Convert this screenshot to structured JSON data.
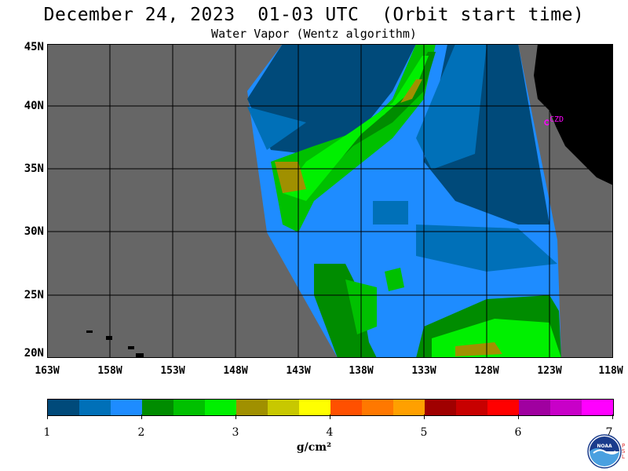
{
  "header": {
    "title": "December 24, 2023  01-03 UTC  (Orbit start time)",
    "subtitle": "Water Vapor (Wentz algorithm)"
  },
  "map": {
    "lat_labels": [
      "45N",
      "40N",
      "35N",
      "30N",
      "25N",
      "20N"
    ],
    "lon_labels": [
      "163W",
      "158W",
      "153W",
      "148W",
      "143W",
      "138W",
      "133W",
      "128W",
      "123W",
      "118W"
    ],
    "station_label": "CZD",
    "colors": {
      "land": "#000000",
      "no_data": "#666666",
      "grid": "#000000",
      "station": "#ff00ff"
    }
  },
  "colorbar": {
    "colors": [
      "#004a7a",
      "#0070b8",
      "#1e8cff",
      "#008c00",
      "#00c000",
      "#00f000",
      "#a09000",
      "#c8c800",
      "#ffff00",
      "#ff5000",
      "#ff7800",
      "#ffa000",
      "#a00000",
      "#c80000",
      "#ff0000",
      "#a000a0",
      "#c800c8",
      "#ff00ff"
    ],
    "tick_labels": [
      "1",
      "2",
      "3",
      "4",
      "5",
      "6",
      "7"
    ],
    "units": "g/cm²"
  },
  "logo": {
    "name": "NOAA",
    "side_text": "PSL"
  }
}
